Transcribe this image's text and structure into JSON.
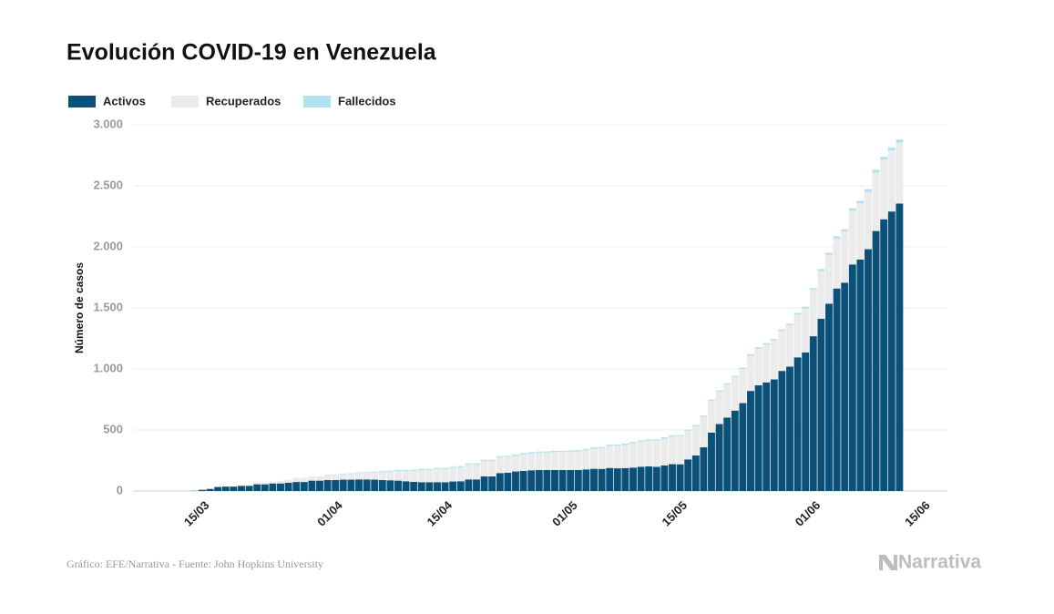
{
  "chart_data": {
    "type": "bar",
    "stacked": true,
    "title": "Evolución COVID-19 en Venezuela",
    "y_label": "Número de casos",
    "source": "Gráfico: EFE/Narrativa - Fuente: John Hopkins University",
    "logo": "Narrativa",
    "categories": [
      null,
      "15/03",
      null,
      null,
      null,
      null,
      null,
      null,
      null,
      null,
      null,
      null,
      null,
      null,
      null,
      null,
      null,
      null,
      "01/04",
      null,
      null,
      null,
      null,
      null,
      null,
      null,
      null,
      null,
      null,
      null,
      null,
      null,
      "15/04",
      null,
      null,
      null,
      null,
      null,
      null,
      null,
      null,
      null,
      null,
      null,
      null,
      null,
      null,
      null,
      "01/05",
      null,
      null,
      null,
      null,
      null,
      null,
      null,
      null,
      null,
      null,
      null,
      null,
      null,
      "15/05",
      null,
      null,
      null,
      null,
      null,
      null,
      null,
      null,
      null,
      null,
      null,
      null,
      null,
      null,
      null,
      null,
      "01/06",
      null,
      null,
      null,
      null,
      null,
      null,
      null,
      null,
      null,
      null,
      null,
      null,
      null,
      "15/06"
    ],
    "series": [
      {
        "name": "Activos",
        "color": "#0b5078",
        "values": [
          2,
          10,
          17,
          33,
          36,
          36,
          42,
          42,
          55,
          55,
          62,
          62,
          68,
          74,
          74,
          85,
          85,
          90,
          90,
          93,
          93,
          95,
          95,
          93,
          90,
          88,
          85,
          80,
          75,
          72,
          72,
          72,
          72,
          78,
          80,
          95,
          95,
          120,
          120,
          147,
          150,
          160,
          165,
          170,
          172,
          172,
          172,
          172,
          172,
          172,
          177,
          182,
          181,
          189,
          186,
          188,
          192,
          199,
          202,
          198,
          210,
          220,
          219,
          259,
          291,
          358,
          479,
          549,
          602,
          659,
          720,
          820,
          866,
          890,
          914,
          984,
          1019,
          1095,
          1136,
          1268,
          1412,
          1535,
          1659,
          1707,
          1856,
          1897,
          1981,
          2130,
          2226,
          2290,
          2355,
          null,
          null,
          null
        ]
      },
      {
        "name": "Recuperados",
        "color": "#ebebeb",
        "values": [
          0,
          0,
          0,
          0,
          0,
          0,
          0,
          0,
          15,
          15,
          15,
          22,
          22,
          32,
          31,
          32,
          31,
          42,
          42,
          45,
          46,
          51,
          53,
          59,
          68,
          72,
          78,
          82,
          91,
          100,
          100,
          108,
          108,
          110,
          115,
          123,
          123,
          127,
          127,
          128,
          128,
          128,
          136,
          138,
          141,
          143,
          147,
          147,
          151,
          153,
          158,
          165,
          170,
          180,
          185,
          190,
          200,
          205,
          210,
          215,
          220,
          225,
          230,
          235,
          240,
          250,
          260,
          265,
          270,
          275,
          280,
          290,
          300,
          310,
          320,
          330,
          340,
          350,
          360,
          380,
          390,
          400,
          410,
          420,
          440,
          460,
          470,
          480,
          490,
          500,
          500,
          null,
          null,
          null
        ]
      },
      {
        "name": "Fallecidos",
        "color": "#b5e0f0",
        "values": [
          0,
          0,
          0,
          0,
          0,
          0,
          0,
          0,
          0,
          0,
          0,
          0,
          1,
          1,
          2,
          2,
          3,
          3,
          3,
          5,
          7,
          7,
          7,
          7,
          7,
          7,
          8,
          9,
          9,
          9,
          9,
          9,
          9,
          9,
          9,
          9,
          9,
          9,
          9,
          10,
          10,
          10,
          10,
          10,
          10,
          10,
          10,
          10,
          10,
          10,
          10,
          10,
          10,
          10,
          10,
          10,
          10,
          10,
          10,
          10,
          10,
          10,
          10,
          10,
          10,
          10,
          10,
          10,
          10,
          10,
          10,
          11,
          11,
          11,
          11,
          11,
          11,
          14,
          14,
          14,
          17,
          17,
          18,
          18,
          20,
          20,
          22,
          22,
          22,
          24,
          24,
          null,
          null,
          null
        ]
      }
    ],
    "ylim": [
      0,
      3000
    ],
    "yticks": [
      0,
      500,
      {
        "value": 1000,
        "label": "1.000"
      },
      {
        "value": 1500,
        "label": "1.500"
      },
      {
        "value": 2000,
        "label": "2.000"
      },
      {
        "value": 2500,
        "label": "2.500"
      },
      {
        "value": 3000,
        "label": "3.000"
      }
    ],
    "grid": true,
    "legend": "top-left"
  }
}
